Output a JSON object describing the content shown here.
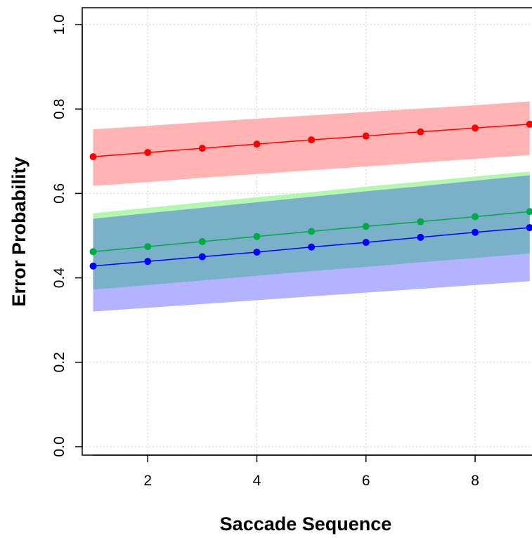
{
  "chart_data": {
    "type": "line",
    "title": "",
    "xlabel": "Saccade Sequence",
    "ylabel": "Error Probability",
    "xlim": [
      0.8,
      9.3
    ],
    "ylim": [
      -0.02,
      1.04
    ],
    "x_ticks": [
      2,
      4,
      6,
      8
    ],
    "x_tick_labels": [
      "2",
      "4",
      "6",
      "8"
    ],
    "y_ticks": [
      0.0,
      0.2,
      0.4,
      0.6,
      0.8,
      1.0
    ],
    "y_tick_labels": [
      "0.0",
      "0.2",
      "0.4",
      "0.6",
      "0.8",
      "1.0"
    ],
    "grid": true,
    "x": [
      1,
      2,
      3,
      4,
      5,
      6,
      7,
      8,
      9
    ],
    "series": [
      {
        "color": "#ff0000",
        "band_color": "#ffb3b3",
        "values": [
          0.687,
          0.697,
          0.707,
          0.717,
          0.727,
          0.736,
          0.746,
          0.755,
          0.764
        ],
        "lower": [
          0.618,
          0.627,
          0.637,
          0.646,
          0.655,
          0.664,
          0.673,
          0.682,
          0.691
        ],
        "upper": [
          0.752,
          0.76,
          0.769,
          0.777,
          0.785,
          0.793,
          0.801,
          0.809,
          0.818
        ]
      },
      {
        "color": "#00aa44",
        "band_color": "#b3f7b0",
        "values": [
          0.462,
          0.474,
          0.486,
          0.498,
          0.51,
          0.522,
          0.533,
          0.545,
          0.557
        ],
        "lower": [
          0.372,
          0.383,
          0.394,
          0.405,
          0.416,
          0.426,
          0.437,
          0.447,
          0.458
        ],
        "upper": [
          0.553,
          0.566,
          0.579,
          0.591,
          0.603,
          0.616,
          0.628,
          0.64,
          0.652
        ]
      },
      {
        "color": "#0000ff",
        "band_color": "#b3b3ff",
        "values": [
          0.428,
          0.439,
          0.45,
          0.461,
          0.473,
          0.484,
          0.496,
          0.508,
          0.519
        ],
        "lower": [
          0.32,
          0.329,
          0.338,
          0.347,
          0.356,
          0.365,
          0.374,
          0.383,
          0.392
        ],
        "upper": [
          0.54,
          0.553,
          0.566,
          0.579,
          0.592,
          0.605,
          0.617,
          0.63,
          0.643
        ]
      }
    ],
    "overlap_color": "#7ab0c8"
  }
}
